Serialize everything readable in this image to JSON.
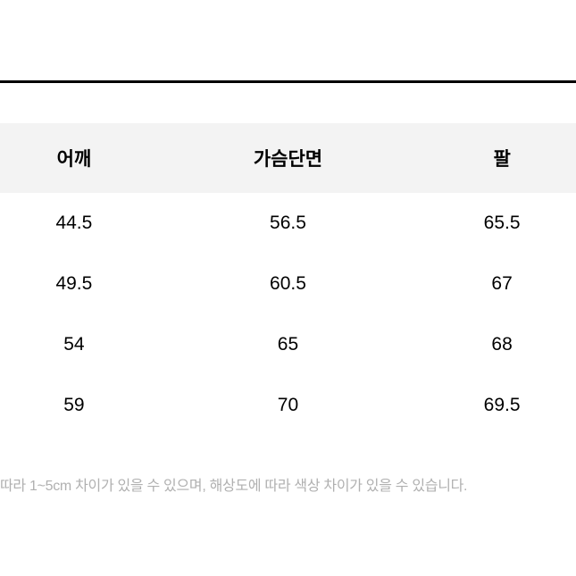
{
  "table": {
    "columns": [
      "어깨",
      "가슴단면",
      "팔"
    ],
    "rows": [
      [
        "44.5",
        "56.5",
        "65.5"
      ],
      [
        "49.5",
        "60.5",
        "67"
      ],
      [
        "54",
        "65",
        "68"
      ],
      [
        "59",
        "70",
        "69.5"
      ]
    ],
    "header_bg_color": "#f3f3f3",
    "text_color": "#000000",
    "header_fontsize": 21,
    "cell_fontsize": 21,
    "column_count": 3
  },
  "divider": {
    "color": "#000000",
    "height": 3
  },
  "footnote": {
    "text": "따라 1~5cm 차이가 있을 수 있으며, 해상도에 따라 색상 차이가 있을 수 있습니다.",
    "color": "#b0b0b0",
    "fontsize": 16
  },
  "background_color": "#ffffff"
}
